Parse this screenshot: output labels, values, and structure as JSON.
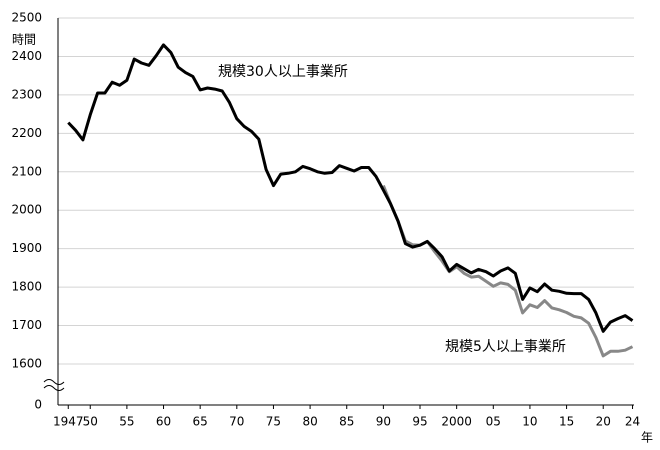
{
  "chart_data": {
    "type": "line",
    "y_unit_label": "時間",
    "x_unit_label": "年",
    "xlim": [
      1945.6,
      2024.2
    ],
    "ylim": [
      0,
      2500
    ],
    "axis_break": [
      0,
      1600
    ],
    "grid": true,
    "xticks": [
      {
        "value": 1947,
        "label": "1947"
      },
      {
        "value": 1950,
        "label": "50"
      },
      {
        "value": 1955,
        "label": "55"
      },
      {
        "value": 1960,
        "label": "60"
      },
      {
        "value": 1965,
        "label": "65"
      },
      {
        "value": 1970,
        "label": "70"
      },
      {
        "value": 1975,
        "label": "75"
      },
      {
        "value": 1980,
        "label": "80"
      },
      {
        "value": 1985,
        "label": "85"
      },
      {
        "value": 1990,
        "label": "90"
      },
      {
        "value": 1995,
        "label": "95"
      },
      2000,
      {
        "value": 2005,
        "label": "05"
      },
      {
        "value": 2010,
        "label": "10"
      },
      {
        "value": 2015,
        "label": "15"
      },
      {
        "value": 2020,
        "label": "20"
      },
      {
        "value": 2024,
        "label": "24"
      }
    ],
    "yticks": [
      0,
      1600,
      1700,
      1800,
      1900,
      2000,
      2100,
      2200,
      2300,
      2400,
      2500
    ],
    "series": [
      {
        "name": "規模30人以上事業所",
        "color": "#000000",
        "x": [
          1947,
          1948,
          1949,
          1950,
          1951,
          1952,
          1953,
          1954,
          1955,
          1956,
          1957,
          1958,
          1959,
          1960,
          1961,
          1962,
          1963,
          1964,
          1965,
          1966,
          1967,
          1968,
          1969,
          1970,
          1971,
          1972,
          1973,
          1974,
          1975,
          1976,
          1977,
          1978,
          1979,
          1980,
          1981,
          1982,
          1983,
          1984,
          1985,
          1986,
          1987,
          1988,
          1989,
          1990,
          1991,
          1992,
          1993,
          1994,
          1995,
          1996,
          1997,
          1998,
          1999,
          2000,
          2001,
          2002,
          2003,
          2004,
          2005,
          2006,
          2007,
          2008,
          2009,
          2010,
          2011,
          2012,
          2013,
          2014,
          2015,
          2016,
          2017,
          2018,
          2019,
          2020,
          2021,
          2022,
          2023,
          2024
        ],
        "values": [
          2228,
          2208,
          2183,
          2248,
          2305,
          2305,
          2333,
          2325,
          2338,
          2393,
          2383,
          2377,
          2402,
          2430,
          2410,
          2372,
          2358,
          2348,
          2313,
          2318,
          2315,
          2310,
          2280,
          2238,
          2218,
          2205,
          2185,
          2106,
          2064,
          2094,
          2096,
          2100,
          2114,
          2108,
          2100,
          2096,
          2098,
          2116,
          2109,
          2102,
          2111,
          2111,
          2088,
          2052,
          2016,
          1972,
          1913,
          1904,
          1909,
          1919,
          1900,
          1879,
          1842,
          1859,
          1848,
          1837,
          1846,
          1840,
          1829,
          1842,
          1850,
          1836,
          1768,
          1798,
          1788,
          1808,
          1792,
          1789,
          1784,
          1783,
          1783,
          1768,
          1733,
          1685,
          1709,
          1718,
          1726,
          1713
        ]
      },
      {
        "name": "規模5人以上事業所",
        "color": "#888888",
        "x": [
          1990,
          1991,
          1992,
          1993,
          1994,
          1995,
          1996,
          1997,
          1998,
          1999,
          2000,
          2001,
          2002,
          2003,
          2004,
          2005,
          2006,
          2007,
          2008,
          2009,
          2010,
          2011,
          2012,
          2013,
          2014,
          2015,
          2016,
          2017,
          2018,
          2019,
          2020,
          2021,
          2022,
          2023,
          2024
        ],
        "values": [
          2064,
          2016,
          1972,
          1920,
          1910,
          1909,
          1919,
          1892,
          1868,
          1840,
          1853,
          1836,
          1826,
          1828,
          1815,
          1802,
          1811,
          1807,
          1792,
          1733,
          1754,
          1747,
          1765,
          1746,
          1741,
          1734,
          1724,
          1720,
          1706,
          1669,
          1621,
          1633,
          1633,
          1636,
          1645
        ]
      }
    ]
  }
}
